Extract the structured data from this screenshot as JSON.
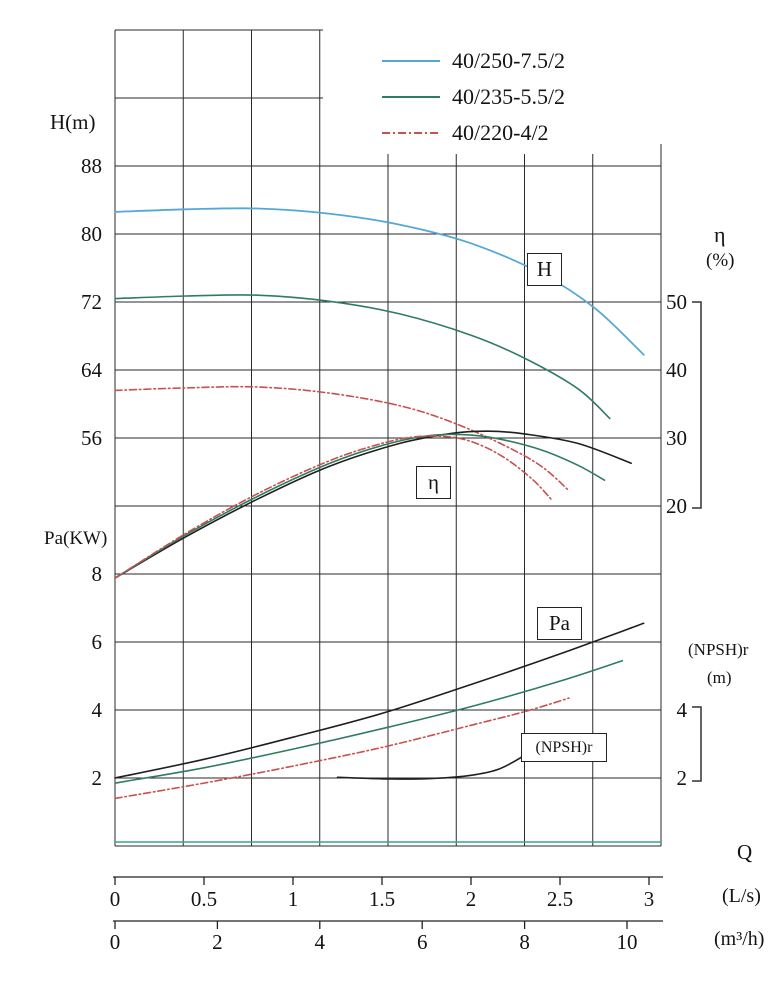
{
  "chart_data": {
    "type": "line",
    "description": "Pump performance curves: head H, efficiency η, power Pa and (NPSH)r versus flow Q",
    "colors": {
      "blue": "#55a8d6",
      "green": "#2f7d5e",
      "red": "#c8504f",
      "black": "#1f1f1f",
      "baseline_teal": "#3aa393",
      "grid": "#2a2a2a"
    },
    "legend": [
      {
        "label": "40/250-7.5/2",
        "color": "#55a8d6",
        "style": "solid"
      },
      {
        "label": "40/235-5.5/2",
        "color": "#2f7d5e",
        "style": "solid"
      },
      {
        "label": "40/220-4/2",
        "color": "#c8504f",
        "style": "dashdot"
      }
    ],
    "axes": {
      "h": {
        "label": "H(m)",
        "ticks": [
          88,
          80,
          72,
          64,
          56
        ]
      },
      "eta": {
        "symbol": "η",
        "unit": "(%)",
        "ticks": [
          50,
          40,
          30,
          20
        ]
      },
      "pa": {
        "label": "Pa(KW)",
        "ticks": [
          8,
          6,
          4,
          2
        ]
      },
      "npsh": {
        "label": "(NPSH)r",
        "unit": "(m)",
        "ticks": [
          4,
          2
        ]
      },
      "q": {
        "symbol": "Q",
        "ls_unit": "(L/s)",
        "ls_ticks": [
          0,
          0.5,
          1,
          1.5,
          2,
          2.5,
          3
        ],
        "m3h_unit": "(m³/h)",
        "m3h_ticks": [
          0,
          2,
          4,
          6,
          8,
          10
        ]
      }
    },
    "curve_labels": [
      {
        "text": "H"
      },
      {
        "text": "η"
      },
      {
        "text": "Pa"
      },
      {
        "text": "(NPSH)r"
      }
    ],
    "series": [
      {
        "id": "H-40/250-7.5/2",
        "group": "H",
        "color": "#55a8d6",
        "style": "solid",
        "width": 1.8,
        "points": [
          [
            0,
            82.6
          ],
          [
            0.4,
            82.9
          ],
          [
            0.8,
            83.0
          ],
          [
            1.2,
            82.4
          ],
          [
            1.6,
            81.1
          ],
          [
            2.0,
            78.9
          ],
          [
            2.4,
            75.3
          ],
          [
            2.7,
            71.2
          ],
          [
            2.97,
            65.8
          ]
        ]
      },
      {
        "id": "H-40/235-5.5/2",
        "group": "H",
        "color": "#2f7d5e",
        "style": "solid",
        "width": 1.6,
        "points": [
          [
            0,
            72.4
          ],
          [
            0.4,
            72.7
          ],
          [
            0.8,
            72.8
          ],
          [
            1.2,
            72.1
          ],
          [
            1.6,
            70.6
          ],
          [
            2.0,
            68.1
          ],
          [
            2.3,
            65.4
          ],
          [
            2.6,
            61.8
          ],
          [
            2.78,
            58.3
          ]
        ]
      },
      {
        "id": "H-40/220-4/2",
        "group": "H",
        "color": "#c8504f",
        "style": "dashdot",
        "width": 1.6,
        "points": [
          [
            0,
            61.6
          ],
          [
            0.4,
            61.9
          ],
          [
            0.8,
            62.0
          ],
          [
            1.2,
            61.3
          ],
          [
            1.6,
            59.8
          ],
          [
            1.9,
            57.8
          ],
          [
            2.2,
            55.0
          ],
          [
            2.4,
            52.6
          ],
          [
            2.55,
            49.8
          ]
        ]
      },
      {
        "id": "eta-40/250-7.5/2",
        "group": "eta",
        "color": "#1f1f1f",
        "style": "solid",
        "width": 1.6,
        "points": [
          [
            0,
            9.4
          ],
          [
            0.4,
            15.5
          ],
          [
            0.8,
            21.0
          ],
          [
            1.2,
            25.8
          ],
          [
            1.6,
            29.2
          ],
          [
            1.9,
            30.7
          ],
          [
            2.1,
            31.0
          ],
          [
            2.3,
            30.6
          ],
          [
            2.6,
            29.2
          ],
          [
            2.9,
            26.3
          ]
        ]
      },
      {
        "id": "eta-40/235-5.5/2",
        "group": "eta",
        "color": "#2f7d5e",
        "style": "solid",
        "width": 1.6,
        "points": [
          [
            0,
            9.4
          ],
          [
            0.4,
            15.8
          ],
          [
            0.8,
            21.4
          ],
          [
            1.2,
            26.2
          ],
          [
            1.5,
            28.9
          ],
          [
            1.75,
            30.3
          ],
          [
            1.95,
            30.5
          ],
          [
            2.15,
            29.9
          ],
          [
            2.4,
            28.2
          ],
          [
            2.6,
            26.0
          ],
          [
            2.75,
            23.8
          ]
        ]
      },
      {
        "id": "eta-40/220-4/2",
        "group": "eta",
        "color": "#c8504f",
        "style": "dashdot",
        "width": 1.6,
        "points": [
          [
            0,
            9.4
          ],
          [
            0.4,
            16.0
          ],
          [
            0.8,
            21.8
          ],
          [
            1.2,
            26.6
          ],
          [
            1.5,
            29.2
          ],
          [
            1.7,
            30.2
          ],
          [
            1.9,
            30.1
          ],
          [
            2.05,
            29.0
          ],
          [
            2.2,
            26.9
          ],
          [
            2.35,
            23.8
          ],
          [
            2.45,
            21.0
          ]
        ]
      },
      {
        "id": "Pa-40/250-7.5/2",
        "group": "Pa",
        "color": "#1f1f1f",
        "style": "solid",
        "width": 1.6,
        "points": [
          [
            0,
            2.0
          ],
          [
            0.5,
            2.55
          ],
          [
            1.0,
            3.2
          ],
          [
            1.5,
            3.9
          ],
          [
            2.0,
            4.75
          ],
          [
            2.5,
            5.65
          ],
          [
            2.97,
            6.55
          ]
        ]
      },
      {
        "id": "Pa-40/235-5.5/2",
        "group": "Pa",
        "color": "#2f7d5e",
        "style": "solid",
        "width": 1.6,
        "points": [
          [
            0,
            1.85
          ],
          [
            0.5,
            2.3
          ],
          [
            1.0,
            2.85
          ],
          [
            1.5,
            3.45
          ],
          [
            2.0,
            4.1
          ],
          [
            2.5,
            4.85
          ],
          [
            2.85,
            5.45
          ]
        ]
      },
      {
        "id": "Pa-40/220-4/2",
        "group": "Pa",
        "color": "#c8504f",
        "style": "dashdot",
        "width": 1.6,
        "points": [
          [
            0,
            1.4
          ],
          [
            0.5,
            1.85
          ],
          [
            1.0,
            2.35
          ],
          [
            1.5,
            2.9
          ],
          [
            2.0,
            3.55
          ],
          [
            2.3,
            3.95
          ],
          [
            2.55,
            4.35
          ]
        ]
      },
      {
        "id": "NPSHr",
        "group": "NPSH",
        "color": "#1f1f1f",
        "style": "solid",
        "width": 1.6,
        "points": [
          [
            1.25,
            2.02
          ],
          [
            1.55,
            1.97
          ],
          [
            1.8,
            1.99
          ],
          [
            2.0,
            2.08
          ],
          [
            2.15,
            2.25
          ],
          [
            2.28,
            2.6
          ],
          [
            2.34,
            2.85
          ]
        ]
      }
    ]
  }
}
